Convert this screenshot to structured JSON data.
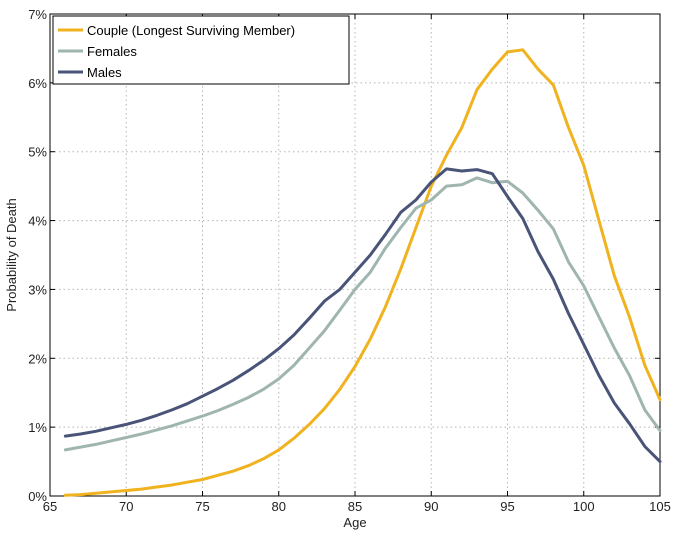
{
  "chart_data": {
    "type": "line",
    "xlabel": "Age",
    "ylabel": "Probability of Death",
    "xlim": [
      65,
      105
    ],
    "ylim": [
      0,
      7
    ],
    "xticks": [
      "65",
      "70",
      "75",
      "80",
      "85",
      "90",
      "95",
      "100",
      "105"
    ],
    "yticks": [
      "0%",
      "1%",
      "2%",
      "3%",
      "4%",
      "5%",
      "6%",
      "7%"
    ],
    "grid": true,
    "legend_position": "top-left",
    "x": [
      66,
      67,
      68,
      69,
      70,
      71,
      72,
      73,
      74,
      75,
      76,
      77,
      78,
      79,
      80,
      81,
      82,
      83,
      84,
      85,
      86,
      87,
      88,
      89,
      90,
      91,
      92,
      93,
      94,
      95,
      96,
      97,
      98,
      99,
      100,
      101,
      102,
      103,
      104,
      105
    ],
    "series": [
      {
        "name": "Couple (Longest Surviving Member)",
        "color": "#f0b31f",
        "values": [
          0.01,
          0.02,
          0.04,
          0.06,
          0.08,
          0.1,
          0.13,
          0.16,
          0.2,
          0.24,
          0.3,
          0.36,
          0.44,
          0.54,
          0.67,
          0.84,
          1.04,
          1.27,
          1.55,
          1.88,
          2.28,
          2.75,
          3.3,
          3.9,
          4.5,
          4.95,
          5.35,
          5.9,
          6.2,
          6.45,
          6.48,
          6.2,
          5.97,
          5.35,
          4.8,
          4.0,
          3.2,
          2.6,
          1.9,
          1.4
        ]
      },
      {
        "name": "Females",
        "color": "#9fb5af",
        "values": [
          0.67,
          0.71,
          0.75,
          0.8,
          0.85,
          0.9,
          0.96,
          1.02,
          1.09,
          1.16,
          1.24,
          1.33,
          1.43,
          1.55,
          1.7,
          1.9,
          2.15,
          2.4,
          2.7,
          3.0,
          3.25,
          3.6,
          3.9,
          4.18,
          4.3,
          4.5,
          4.52,
          4.62,
          4.55,
          4.57,
          4.4,
          4.15,
          3.88,
          3.4,
          3.05,
          2.6,
          2.15,
          1.75,
          1.25,
          0.95
        ]
      },
      {
        "name": "Males",
        "color": "#4a5478",
        "values": [
          0.87,
          0.9,
          0.94,
          0.99,
          1.04,
          1.1,
          1.17,
          1.25,
          1.34,
          1.45,
          1.56,
          1.68,
          1.82,
          1.97,
          2.14,
          2.34,
          2.58,
          2.83,
          3.0,
          3.25,
          3.5,
          3.8,
          4.12,
          4.3,
          4.56,
          4.75,
          4.72,
          4.74,
          4.68,
          4.35,
          4.03,
          3.55,
          3.15,
          2.65,
          2.2,
          1.75,
          1.35,
          1.05,
          0.72,
          0.5
        ]
      }
    ]
  }
}
